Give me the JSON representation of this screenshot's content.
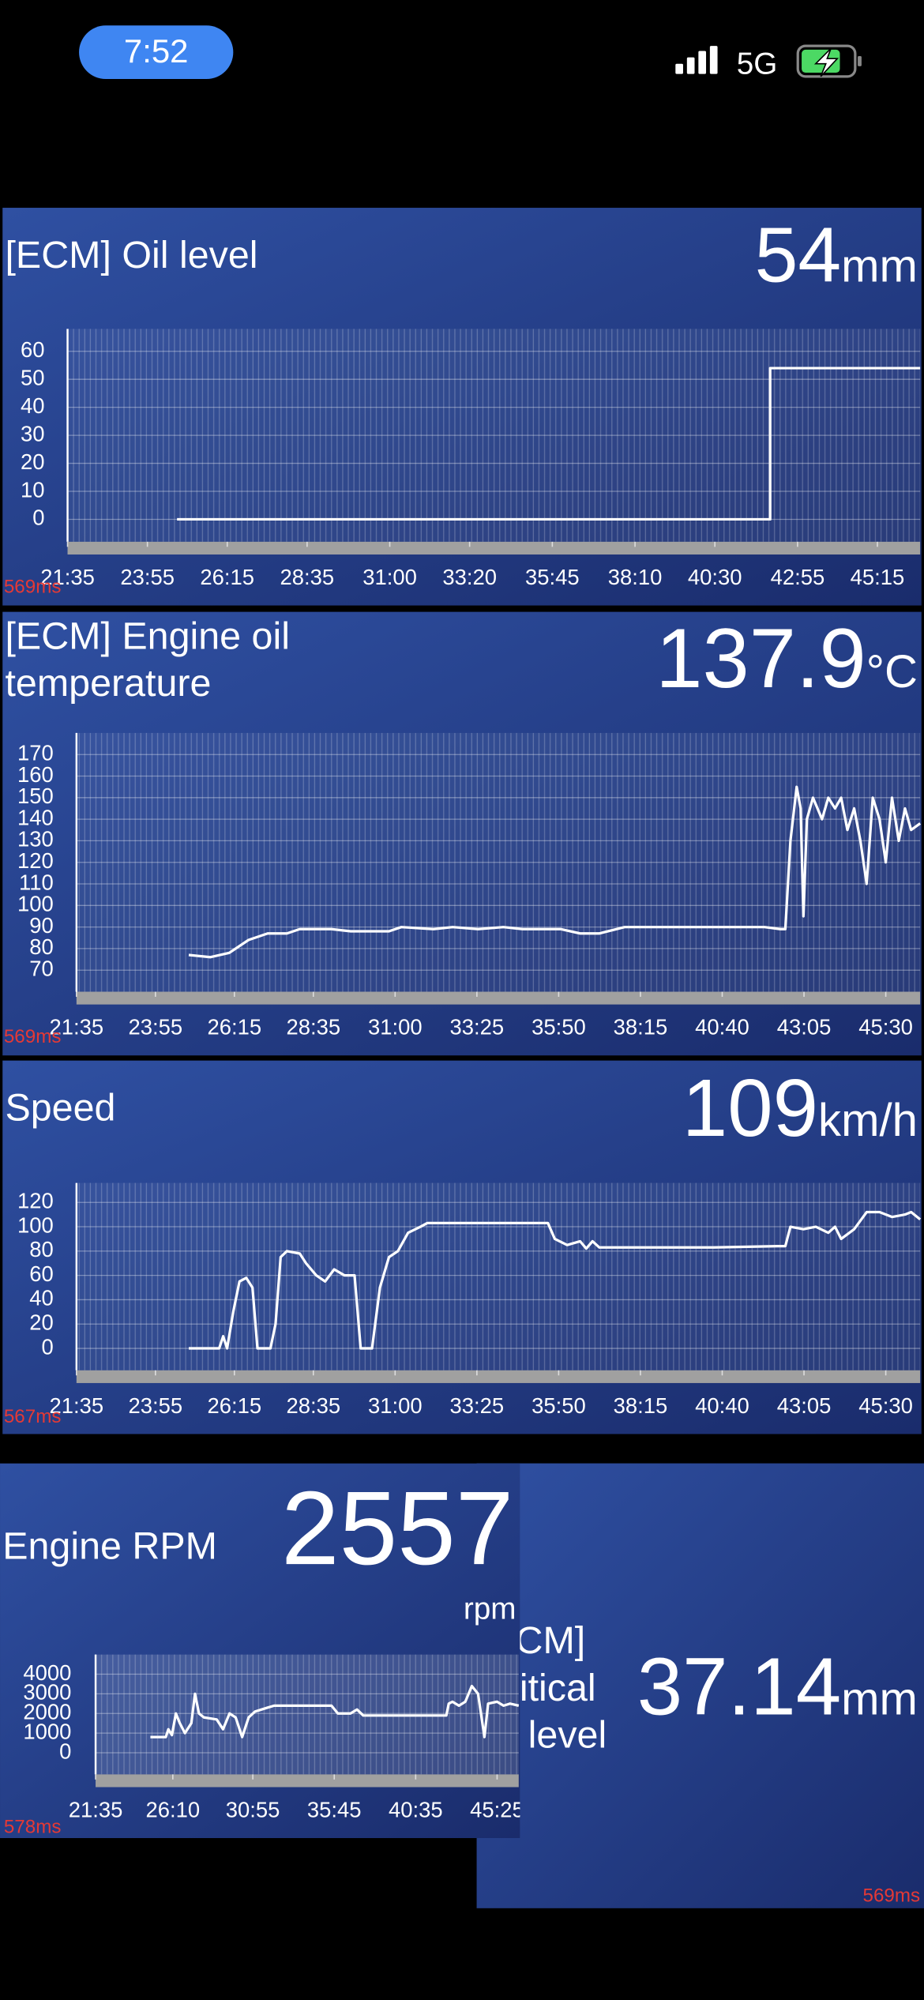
{
  "status_bar": {
    "time": "7:52",
    "network": "5G"
  },
  "chart_data": [
    {
      "type": "line",
      "title_lines": [
        "[ECM] Oil level"
      ],
      "value": 54,
      "unit": "mm",
      "latency": "569ms",
      "xlim": [
        1295,
        2790
      ],
      "xticks": [
        {
          "value": 1295,
          "label": "21:35"
        },
        {
          "value": 1435,
          "label": "23:55"
        },
        {
          "value": 1575,
          "label": "26:15"
        },
        {
          "value": 1715,
          "label": "28:35"
        },
        {
          "value": 1860,
          "label": "31:00"
        },
        {
          "value": 2000,
          "label": "33:20"
        },
        {
          "value": 2145,
          "label": "35:45"
        },
        {
          "value": 2290,
          "label": "38:10"
        },
        {
          "value": 2430,
          "label": "40:30"
        },
        {
          "value": 2575,
          "label": "42:55"
        },
        {
          "value": 2715,
          "label": "45:15"
        }
      ],
      "ylim": [
        -8,
        68
      ],
      "yticks": [
        0,
        10,
        20,
        30,
        40,
        50,
        60
      ],
      "series": [
        {
          "color": "#ffffff",
          "x": [
            1487,
            2527,
            2527,
            2790
          ],
          "values": [
            0,
            0,
            54,
            54
          ]
        }
      ]
    },
    {
      "type": "line",
      "title_lines": [
        "[ECM] Engine oil",
        "temperature"
      ],
      "value": 137.9,
      "unit": "°C",
      "latency": "569ms",
      "xlim": [
        1295,
        2791
      ],
      "xticks": [
        {
          "value": 1295,
          "label": "21:35"
        },
        {
          "value": 1435,
          "label": "23:55"
        },
        {
          "value": 1575,
          "label": "26:15"
        },
        {
          "value": 1715,
          "label": "28:35"
        },
        {
          "value": 1860,
          "label": "31:00"
        },
        {
          "value": 2005,
          "label": "33:25"
        },
        {
          "value": 2150,
          "label": "35:50"
        },
        {
          "value": 2295,
          "label": "38:15"
        },
        {
          "value": 2440,
          "label": "40:40"
        },
        {
          "value": 2585,
          "label": "43:05"
        },
        {
          "value": 2730,
          "label": "45:30"
        }
      ],
      "ylim": [
        60,
        180
      ],
      "yticks": [
        70,
        80,
        90,
        100,
        110,
        120,
        130,
        140,
        150,
        160,
        170
      ],
      "series": [
        {
          "color": "#ffffff",
          "x": [
            1494,
            1532,
            1566,
            1600,
            1634,
            1668,
            1691,
            1747,
            1781,
            1849,
            1871,
            1928,
            1962,
            2007,
            2052,
            2086,
            2154,
            2188,
            2222,
            2267,
            2515,
            2543,
            2552,
            2561,
            2572,
            2579,
            2584,
            2590,
            2601,
            2617,
            2628,
            2640,
            2651,
            2662,
            2674,
            2685,
            2696,
            2707,
            2719,
            2730,
            2741,
            2753,
            2764,
            2775,
            2791
          ],
          "values": [
            77,
            76,
            78,
            84,
            87,
            87,
            89,
            89,
            88,
            88,
            90,
            89,
            90,
            89,
            90,
            89,
            89,
            87,
            87,
            90,
            90,
            89,
            89,
            130,
            155,
            145,
            95,
            140,
            150,
            140,
            150,
            145,
            150,
            135,
            145,
            130,
            110,
            150,
            140,
            120,
            150,
            130,
            145,
            135,
            138
          ]
        }
      ]
    },
    {
      "type": "line",
      "title_lines": [
        "Speed"
      ],
      "value": 109,
      "unit": "km/h",
      "latency": "567ms",
      "xlim": [
        1295,
        2791
      ],
      "xticks": [
        {
          "value": 1295,
          "label": "21:35"
        },
        {
          "value": 1435,
          "label": "23:55"
        },
        {
          "value": 1575,
          "label": "26:15"
        },
        {
          "value": 1715,
          "label": "28:35"
        },
        {
          "value": 1860,
          "label": "31:00"
        },
        {
          "value": 2005,
          "label": "33:25"
        },
        {
          "value": 2150,
          "label": "35:50"
        },
        {
          "value": 2295,
          "label": "38:15"
        },
        {
          "value": 2440,
          "label": "40:40"
        },
        {
          "value": 2585,
          "label": "43:05"
        },
        {
          "value": 2730,
          "label": "45:30"
        }
      ],
      "ylim": [
        -18,
        136
      ],
      "yticks": [
        0,
        20,
        40,
        60,
        80,
        100,
        120
      ],
      "series": [
        {
          "color": "#ffffff",
          "x": [
            1494,
            1548,
            1555,
            1562,
            1573,
            1584,
            1596,
            1607,
            1616,
            1639,
            1648,
            1657,
            1668,
            1691,
            1702,
            1720,
            1736,
            1752,
            1770,
            1788,
            1799,
            1819,
            1833,
            1849,
            1865,
            1883,
            1905,
            1917,
            1939,
            2063,
            2131,
            2143,
            2165,
            2188,
            2199,
            2210,
            2222,
            2289,
            2425,
            2538,
            2552,
            2561,
            2584,
            2606,
            2628,
            2640,
            2651,
            2674,
            2696,
            2719,
            2741,
            2764,
            2775,
            2791
          ],
          "values": [
            0,
            0,
            10,
            0,
            30,
            55,
            58,
            50,
            0,
            0,
            20,
            75,
            80,
            78,
            70,
            60,
            55,
            65,
            60,
            60,
            0,
            0,
            50,
            75,
            80,
            95,
            100,
            103,
            103,
            103,
            103,
            90,
            85,
            88,
            82,
            88,
            83,
            83,
            83,
            84,
            84,
            100,
            98,
            100,
            95,
            100,
            90,
            98,
            112,
            112,
            108,
            110,
            112,
            106
          ]
        }
      ]
    },
    {
      "type": "line",
      "title_lines": [
        "Engine RPM"
      ],
      "value": 2557,
      "unit": "rpm",
      "latency": "578ms",
      "xlim": [
        1295,
        2802
      ],
      "xticks": [
        {
          "value": 1295,
          "label": "21:35"
        },
        {
          "value": 1570,
          "label": "26:10"
        },
        {
          "value": 1855,
          "label": "30:55"
        },
        {
          "value": 2145,
          "label": "35:45"
        },
        {
          "value": 2435,
          "label": "40:35"
        },
        {
          "value": 2725,
          "label": "45:25"
        }
      ],
      "ylim": [
        -1100,
        5000
      ],
      "yticks": [
        0,
        1000,
        2000,
        3000,
        4000
      ],
      "series": [
        {
          "color": "#ffffff",
          "x": [
            1490,
            1545,
            1554,
            1567,
            1581,
            1595,
            1613,
            1636,
            1649,
            1663,
            1681,
            1726,
            1749,
            1772,
            1794,
            1817,
            1840,
            1863,
            1908,
            1931,
            2135,
            2158,
            2203,
            2226,
            2248,
            2544,
            2553,
            2566,
            2589,
            2612,
            2635,
            2657,
            2680,
            2693,
            2725,
            2748,
            2771,
            2802
          ],
          "values": [
            800,
            800,
            1200,
            900,
            2000,
            1500,
            1000,
            1500,
            3000,
            2000,
            1800,
            1700,
            1200,
            2000,
            1800,
            800,
            1800,
            2100,
            2300,
            2400,
            2400,
            2000,
            2000,
            2200,
            1900,
            1900,
            2500,
            2600,
            2400,
            2600,
            3400,
            3000,
            800,
            2500,
            2600,
            2400,
            2500,
            2400
          ]
        }
      ]
    }
  ],
  "gauge": {
    "title_lines": [
      "[ECM]",
      "Critical",
      "oil level"
    ],
    "value": 37.14,
    "unit": "mm",
    "latency": "569ms"
  }
}
